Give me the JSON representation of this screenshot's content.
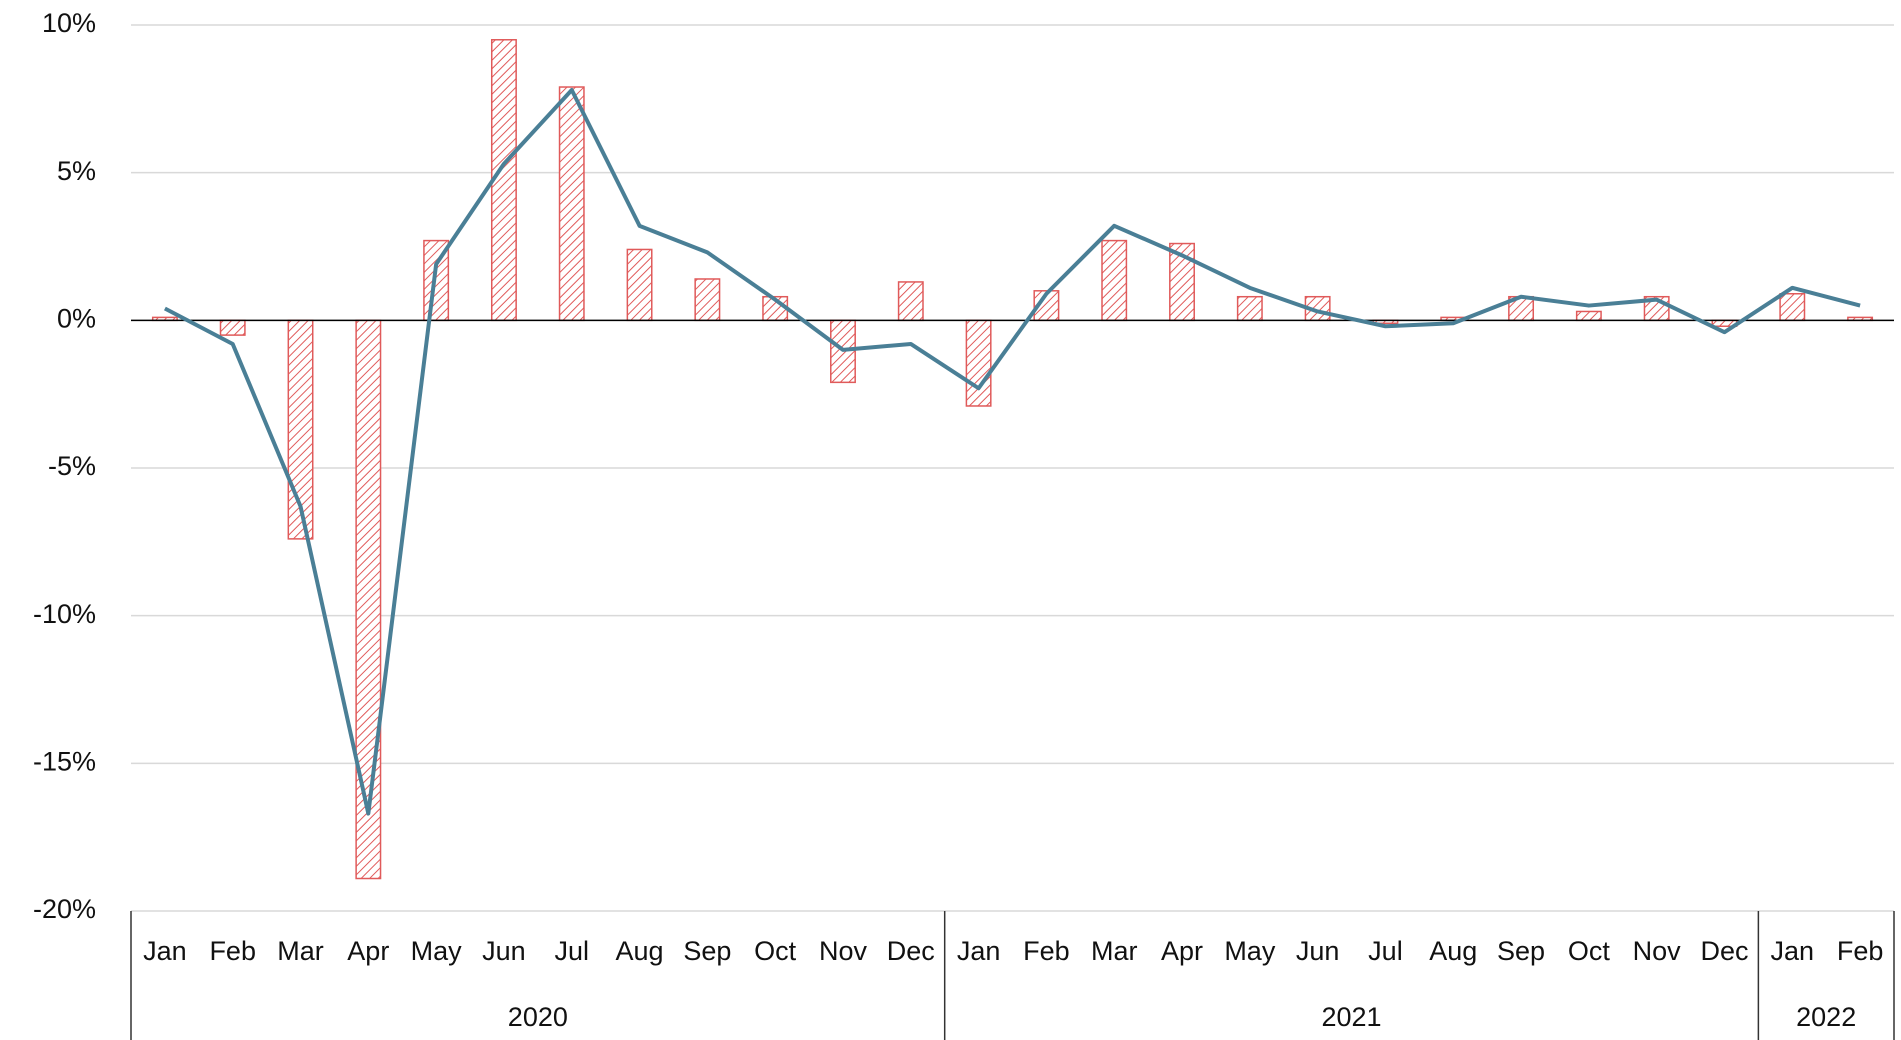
{
  "chart_data": {
    "type": "bar+line",
    "categories": [
      "Jan",
      "Feb",
      "Mar",
      "Apr",
      "May",
      "Jun",
      "Jul",
      "Aug",
      "Sep",
      "Oct",
      "Nov",
      "Dec",
      "Jan",
      "Feb",
      "Mar",
      "Apr",
      "May",
      "Jun",
      "Jul",
      "Aug",
      "Sep",
      "Oct",
      "Nov",
      "Dec",
      "Jan",
      "Feb"
    ],
    "years": [
      "2020",
      "2020",
      "2020",
      "2020",
      "2020",
      "2020",
      "2020",
      "2020",
      "2020",
      "2020",
      "2020",
      "2020",
      "2021",
      "2021",
      "2021",
      "2021",
      "2021",
      "2021",
      "2021",
      "2021",
      "2021",
      "2021",
      "2021",
      "2021",
      "2022",
      "2022"
    ],
    "series": [
      {
        "type": "bar",
        "color": "#e05a5a",
        "values": [
          0.1,
          -0.5,
          -7.4,
          -18.9,
          2.7,
          9.5,
          7.9,
          2.4,
          1.4,
          0.8,
          -2.1,
          1.3,
          -2.9,
          1.0,
          2.7,
          2.6,
          0.8,
          0.8,
          -0.1,
          0.1,
          0.8,
          0.3,
          0.8,
          -0.2,
          0.9,
          0.1
        ]
      },
      {
        "type": "line",
        "color": "#4a7f96",
        "values": [
          0.4,
          -0.8,
          -6.3,
          -16.7,
          1.9,
          5.3,
          7.8,
          3.2,
          2.3,
          0.7,
          -1.0,
          -0.8,
          -2.3,
          0.9,
          3.2,
          2.2,
          1.1,
          0.3,
          -0.2,
          -0.1,
          0.8,
          0.5,
          0.7,
          -0.4,
          1.1,
          0.5
        ]
      }
    ],
    "ylim": [
      -20,
      10
    ],
    "yticks": [
      {
        "value": -20,
        "label": "-20%"
      },
      {
        "value": -15,
        "label": "-15%"
      },
      {
        "value": -10,
        "label": "-10%"
      },
      {
        "value": -5,
        "label": "-5%"
      },
      {
        "value": 0,
        "label": "0%"
      },
      {
        "value": 5,
        "label": "5%"
      },
      {
        "value": 10,
        "label": "10%"
      }
    ],
    "grid": true
  }
}
